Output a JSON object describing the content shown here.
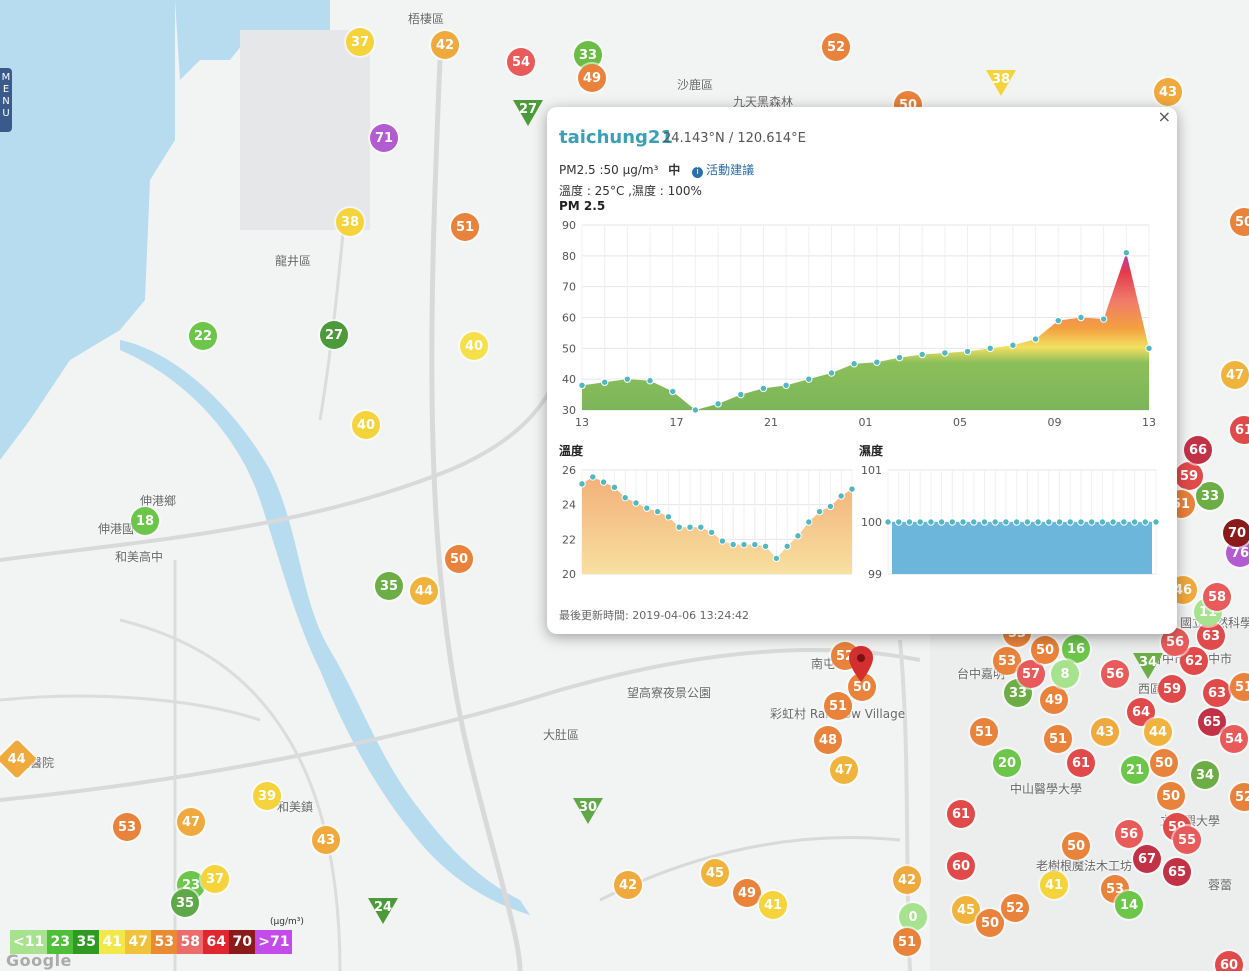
{
  "map": {
    "place_labels": [
      "梧棲區",
      "沙鹿區",
      "九天黑森林",
      "龍井區",
      "伸港鄉",
      "伸港國",
      "和美鎮",
      "大肚區",
      "南屯",
      "彩虹村 Rainbow Village",
      "望高寮夜景公園",
      "台中嘉明",
      "西區",
      "中山醫學大學",
      "老樹根魔法木工坊",
      "台中市",
      "國立自然科學博物館",
      "和美高中",
      "中市",
      "壹醫院",
      "立中興大學",
      "蓉蕾"
    ],
    "markers": [
      {
        "v": "37",
        "c": "#f5d33a"
      },
      {
        "v": "42",
        "c": "#f0a93c"
      },
      {
        "v": "54",
        "c": "#e95b5b"
      },
      {
        "v": "33",
        "c": "#6cbd45"
      },
      {
        "v": "49",
        "c": "#e9823a"
      },
      {
        "v": "27",
        "c": "#4d9a3a",
        "shape": "tri"
      },
      {
        "v": "52",
        "c": "#e9823a"
      },
      {
        "v": "50",
        "c": "#e9823a"
      },
      {
        "v": "38",
        "c": "#f5d33a",
        "shape": "tri"
      },
      {
        "v": "43",
        "c": "#f0a93c"
      },
      {
        "v": "71",
        "c": "#b35bd0"
      },
      {
        "v": "38",
        "c": "#f5d33a"
      },
      {
        "v": "51",
        "c": "#e9823a"
      },
      {
        "v": "22",
        "c": "#6cc64a"
      },
      {
        "v": "27",
        "c": "#4d9a3a"
      },
      {
        "v": "40",
        "c": "#f5e04a"
      },
      {
        "v": "40",
        "c": "#f5d33a"
      },
      {
        "v": "18",
        "c": "#6cc64a"
      },
      {
        "v": "50",
        "c": "#e9823a"
      },
      {
        "v": "35",
        "c": "#6cae45"
      },
      {
        "v": "44",
        "c": "#f0b43c"
      },
      {
        "v": "44",
        "c": "#f0a93c",
        "shape": "dia"
      },
      {
        "v": "39",
        "c": "#f5d33a"
      },
      {
        "v": "53",
        "c": "#e9823a"
      },
      {
        "v": "47",
        "c": "#f0a93c"
      },
      {
        "v": "23",
        "c": "#6cc64a"
      },
      {
        "v": "37",
        "c": "#f5d33a"
      },
      {
        "v": "35",
        "c": "#5fa848"
      },
      {
        "v": "43",
        "c": "#f0a93c"
      },
      {
        "v": "24",
        "c": "#4d9a3a",
        "shape": "tri"
      },
      {
        "v": "30",
        "c": "#5fa848",
        "shape": "tri"
      },
      {
        "v": "42",
        "c": "#f0a93c"
      },
      {
        "v": "45",
        "c": "#f0b43c"
      },
      {
        "v": "49",
        "c": "#e9823a"
      },
      {
        "v": "41",
        "c": "#f5d33a"
      },
      {
        "v": "51",
        "c": "#e9823a"
      },
      {
        "v": "48",
        "c": "#e9823a"
      },
      {
        "v": "47",
        "c": "#f0b43c"
      },
      {
        "v": "50",
        "c": "#e9823a"
      },
      {
        "v": "52",
        "c": "#e9823a"
      },
      {
        "v": "42",
        "c": "#f0a93c"
      },
      {
        "v": "0",
        "c": "#a7e28e"
      },
      {
        "v": "51",
        "c": "#e9823a"
      },
      {
        "v": "45",
        "c": "#f0b43c"
      },
      {
        "v": "50",
        "c": "#e9823a"
      },
      {
        "v": "52",
        "c": "#e9823a"
      },
      {
        "v": "60",
        "c": "#e04a4a"
      },
      {
        "v": "61",
        "c": "#e04a4a"
      },
      {
        "v": "20",
        "c": "#6cc64a"
      },
      {
        "v": "61",
        "c": "#e04a4a"
      },
      {
        "v": "21",
        "c": "#6cc64a"
      },
      {
        "v": "50",
        "c": "#e9823a"
      },
      {
        "v": "34",
        "c": "#6cae45"
      },
      {
        "v": "50",
        "c": "#e9823a"
      },
      {
        "v": "59",
        "c": "#e04a4a"
      },
      {
        "v": "56",
        "c": "#e95b5b"
      },
      {
        "v": "67",
        "c": "#c23246"
      },
      {
        "v": "65",
        "c": "#c23246"
      },
      {
        "v": "53",
        "c": "#e9823a"
      },
      {
        "v": "14",
        "c": "#6cc64a"
      },
      {
        "v": "41",
        "c": "#f5d33a"
      },
      {
        "v": "50",
        "c": "#e9823a"
      },
      {
        "v": "53",
        "c": "#e9823a"
      },
      {
        "v": "33",
        "c": "#6cae45"
      },
      {
        "v": "49",
        "c": "#e9823a"
      },
      {
        "v": "51",
        "c": "#e9823a"
      },
      {
        "v": "64",
        "c": "#e04a4a"
      },
      {
        "v": "43",
        "c": "#f0a93c"
      },
      {
        "v": "44",
        "c": "#f0b43c"
      },
      {
        "v": "65",
        "c": "#c23246"
      },
      {
        "v": "51",
        "c": "#e9823a"
      },
      {
        "v": "63",
        "c": "#e04a4a"
      },
      {
        "v": "16",
        "c": "#6cc64a"
      },
      {
        "v": "8",
        "c": "#a7e28e"
      },
      {
        "v": "56",
        "c": "#e95b5b"
      },
      {
        "v": "34",
        "c": "#6cae45",
        "shape": "tri"
      },
      {
        "v": "62",
        "c": "#e04a4a"
      },
      {
        "v": "56",
        "c": "#e95b5b"
      },
      {
        "v": "63",
        "c": "#e04a4a"
      },
      {
        "v": "11",
        "c": "#a7e28e"
      },
      {
        "v": "58",
        "c": "#e95b5b"
      },
      {
        "v": "46",
        "c": "#f0a93c"
      },
      {
        "v": "76",
        "c": "#b35bd0"
      },
      {
        "v": "70",
        "c": "#8b1a1a"
      },
      {
        "v": "33",
        "c": "#6cae45"
      },
      {
        "v": "59",
        "c": "#e04a4a"
      },
      {
        "v": "66",
        "c": "#c23246"
      },
      {
        "v": "47",
        "c": "#f0b43c"
      },
      {
        "v": "51",
        "c": "#e9823a"
      },
      {
        "v": "53",
        "c": "#e9823a"
      },
      {
        "v": "57",
        "c": "#e95b5b"
      },
      {
        "v": "50",
        "c": "#e9823a"
      },
      {
        "v": "59",
        "c": "#e04a4a"
      },
      {
        "v": "54",
        "c": "#e95b5b"
      },
      {
        "v": "55",
        "c": "#e95b5b"
      },
      {
        "v": "60",
        "c": "#e04a4a"
      },
      {
        "v": "50",
        "c": "#e9823a"
      },
      {
        "v": "51",
        "c": "#e9823a"
      },
      {
        "v": "61",
        "c": "#e04a4a"
      },
      {
        "v": "52",
        "c": "#e9823a"
      }
    ]
  },
  "menu_label": "MENU",
  "popup": {
    "close": "×",
    "station": "taichung21",
    "coords": "24.143°N / 120.614°E",
    "pm_text": "PM2.5 :50 μg/m³",
    "level": "中",
    "info_icon": "i",
    "advice": "活動建議",
    "weather": "溫度 : 25°C ,濕度 : 100%",
    "pm_chart_title": "PM 2.5",
    "temp_chart_title": "溫度",
    "hum_chart_title": "濕度",
    "updated": "最後更新時間: 2019-04-06 13:24:42"
  },
  "chart_data": [
    {
      "type": "area",
      "title": "PM 2.5",
      "xticks": [
        "13",
        "17",
        "21",
        "01",
        "05",
        "09",
        "13"
      ],
      "ylim": [
        30,
        90
      ],
      "yticks": [
        30,
        40,
        50,
        60,
        70,
        80,
        90
      ],
      "grid": true,
      "values": [
        38,
        39,
        40,
        39.5,
        36,
        30,
        32,
        35,
        37,
        38,
        40,
        42,
        45,
        45.5,
        47,
        48,
        48.5,
        49,
        50,
        51,
        53,
        59,
        60,
        59.5,
        81,
        50
      ]
    },
    {
      "type": "area",
      "title": "溫度",
      "ylim": [
        20,
        26
      ],
      "yticks": [
        20,
        22,
        24,
        26
      ],
      "grid": true,
      "values": [
        25.2,
        25.6,
        25.3,
        25,
        24.4,
        24.1,
        23.8,
        23.6,
        23.3,
        22.7,
        22.7,
        22.7,
        22.4,
        21.9,
        21.7,
        21.7,
        21.7,
        21.6,
        20.9,
        21.6,
        22.2,
        23,
        23.6,
        23.9,
        24.5,
        24.9
      ]
    },
    {
      "type": "bar",
      "title": "濕度",
      "ylim": [
        99,
        101
      ],
      "yticks": [
        99,
        100,
        101
      ],
      "grid": true,
      "values": [
        100,
        100,
        100,
        100,
        100,
        100,
        100,
        100,
        100,
        100,
        100,
        100,
        100,
        100,
        100,
        100,
        100,
        100,
        100,
        100,
        100,
        100,
        100,
        100,
        100,
        100
      ]
    }
  ],
  "legend": {
    "unit": "(μg/m³)",
    "cells": [
      {
        "label": "<11",
        "color": "#a7e28e"
      },
      {
        "label": "23",
        "color": "#4fbf3a"
      },
      {
        "label": "35",
        "color": "#2e9a22"
      },
      {
        "label": "41",
        "color": "#f3e84a"
      },
      {
        "label": "47",
        "color": "#f1c23c"
      },
      {
        "label": "53",
        "color": "#ea8b33"
      },
      {
        "label": "58",
        "color": "#ec6b6b"
      },
      {
        "label": "64",
        "color": "#e0272f"
      },
      {
        "label": "70",
        "color": "#8b1a1a"
      },
      {
        "label": ">71",
        "color": "#c34bec"
      }
    ]
  },
  "attribution": "Google"
}
